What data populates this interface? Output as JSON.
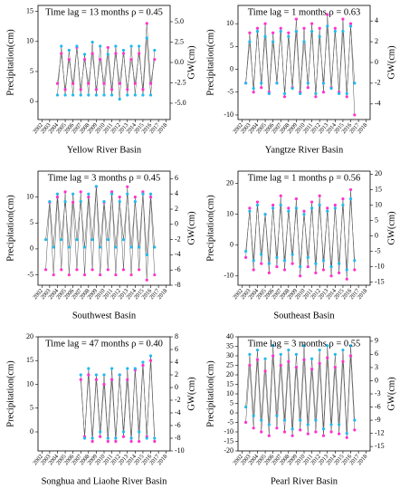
{
  "chart_data": [
    {
      "type": "line",
      "title": "Time lag = 13 months ρ = 0.45",
      "xlabel": "Yellow River Basin",
      "ylabel": "Precipitation(cm)",
      "y2label": "GW(cm)",
      "x": [
        2004,
        2004.5,
        2005,
        2005.5,
        2006,
        2006.5,
        2007,
        2007.5,
        2008,
        2008.5,
        2009,
        2009.5,
        2010,
        2010.5,
        2011,
        2011.5,
        2012,
        2012.5,
        2013,
        2013.5,
        2014,
        2014.5,
        2015,
        2015.5,
        2016,
        2016.5
      ],
      "xlim": [
        2001.5,
        2018.5
      ],
      "xticks": [
        2002,
        2003,
        2004,
        2005,
        2006,
        2007,
        2008,
        2009,
        2010,
        2011,
        2012,
        2013,
        2014,
        2015,
        2016,
        2017,
        2018
      ],
      "ylim": [
        -3,
        16
      ],
      "yticks": [
        0,
        5,
        10,
        15
      ],
      "y2lim": [
        -7,
        7
      ],
      "y2ticks": [
        {
          "value": -5,
          "label": "-5.0"
        },
        {
          "value": -2.5,
          "label": "-2.5"
        },
        {
          "value": 0,
          "label": "0.0"
        },
        {
          "value": 2.5,
          "label": "2.5"
        },
        {
          "value": 5,
          "label": "5.0"
        }
      ],
      "series": [
        {
          "color": "#ff33cc",
          "values": [
            3,
            8,
            2,
            7,
            3,
            9,
            2,
            7,
            3,
            8,
            2,
            7,
            3,
            9,
            2,
            8,
            3,
            8,
            2,
            7,
            3,
            8,
            2,
            13,
            3,
            7
          ]
        },
        {
          "color": "#22bbee",
          "axis": "y2",
          "values": [
            -4,
            2,
            -4,
            1.5,
            -4,
            2,
            -4,
            1,
            -4,
            2.5,
            -4,
            2,
            -4,
            1,
            -4,
            2,
            -4.5,
            1.5,
            -4,
            2,
            -4,
            2,
            -4,
            3,
            -4,
            1.5
          ]
        }
      ]
    },
    {
      "type": "line",
      "title": "Time lag = 1 months ρ = 0.63",
      "xlabel": "Yangtze River Basin",
      "ylabel": "Precipitation(cm)",
      "y2label": "GW(cm)",
      "x": [
        2002.5,
        2003,
        2003.5,
        2004,
        2004.5,
        2005,
        2005.5,
        2006,
        2006.5,
        2007,
        2007.5,
        2008,
        2008.5,
        2009,
        2009.5,
        2010,
        2010.5,
        2011,
        2011.5,
        2012,
        2012.5,
        2013,
        2013.5,
        2014,
        2014.5,
        2015,
        2015.5,
        2016,
        2016.5
      ],
      "xlim": [
        2001.5,
        2018.5
      ],
      "xticks": [
        2002,
        2003,
        2004,
        2005,
        2006,
        2007,
        2008,
        2009,
        2010,
        2011,
        2012,
        2013,
        2014,
        2015,
        2016,
        2017,
        2018
      ],
      "ylim": [
        -11,
        14
      ],
      "yticks": [
        -10,
        -5,
        0,
        5,
        10
      ],
      "y2lim": [
        -5.5,
        5.5
      ],
      "y2ticks": [
        -4,
        -2,
        0,
        2,
        4
      ],
      "series": [
        {
          "color": "#ff33cc",
          "values": [
            -3,
            8,
            -5,
            9,
            -4,
            10,
            -5,
            8,
            -3,
            9,
            -6,
            8,
            -4,
            11,
            -5,
            9,
            -4,
            10,
            -6,
            9,
            -5,
            12,
            -4,
            9,
            -5,
            11,
            -6,
            10,
            -10
          ]
        },
        {
          "color": "#22bbee",
          "axis": "y2",
          "values": [
            -2,
            2,
            -2.5,
            3,
            -2,
            2.5,
            -3,
            2,
            -2,
            3,
            -3,
            2.5,
            -2.5,
            3,
            -3,
            2,
            -2,
            3,
            -3,
            2.5,
            -2,
            3.5,
            -2.5,
            3,
            -3,
            3,
            -3,
            3.5,
            -2
          ]
        }
      ]
    },
    {
      "type": "line",
      "title": "Time lag = 3 months ρ = 0.45",
      "xlabel": "Southwest Basin",
      "ylabel": "Precipitation(cm)",
      "y2label": "GW(cm)",
      "x": [
        2002.5,
        2003,
        2003.5,
        2004,
        2004.5,
        2005,
        2005.5,
        2006,
        2006.5,
        2007,
        2007.5,
        2008,
        2008.5,
        2009,
        2009.5,
        2010,
        2010.5,
        2011,
        2011.5,
        2012,
        2012.5,
        2013,
        2013.5,
        2014,
        2014.5,
        2015,
        2015.5,
        2016,
        2016.5
      ],
      "xlim": [
        2001.5,
        2018.5
      ],
      "xticks": [
        2002,
        2003,
        2004,
        2005,
        2006,
        2007,
        2008,
        2009,
        2010,
        2011,
        2012,
        2013,
        2014,
        2015,
        2016,
        2017,
        2018
      ],
      "ylim": [
        -7,
        15
      ],
      "yticks": [
        -5,
        0,
        5,
        10
      ],
      "y2lim": [
        -8,
        7
      ],
      "y2ticks": [
        -8,
        -6,
        -4,
        -2,
        0,
        2,
        4,
        6
      ],
      "series": [
        {
          "color": "#ff33cc",
          "values": [
            -4,
            9,
            -5,
            10,
            -4,
            11,
            -5,
            9,
            -4,
            11,
            -5,
            10,
            -4,
            12,
            -5,
            9,
            -4,
            11,
            -5,
            10,
            -4,
            12,
            -5,
            10,
            -4,
            11,
            -6,
            10,
            -5
          ]
        },
        {
          "color": "#22bbee",
          "axis": "y2",
          "values": [
            -2,
            3,
            -3,
            4,
            -2,
            3,
            -3,
            4,
            -2,
            3,
            -3,
            4,
            -2,
            5,
            -3,
            3,
            -2,
            4,
            -3,
            3,
            -2,
            4,
            -3,
            3,
            -3,
            4,
            -4,
            4,
            -3
          ]
        }
      ]
    },
    {
      "type": "line",
      "title": "Time lag = 1 months ρ = 0.56",
      "xlabel": "Southeast Basin",
      "ylabel": "Precipitation(cm)",
      "y2label": "GW(cm)",
      "x": [
        2002.5,
        2003,
        2003.5,
        2004,
        2004.5,
        2005,
        2005.5,
        2006,
        2006.5,
        2007,
        2007.5,
        2008,
        2008.5,
        2009,
        2009.5,
        2010,
        2010.5,
        2011,
        2011.5,
        2012,
        2012.5,
        2013,
        2013.5,
        2014,
        2014.5,
        2015,
        2015.5,
        2016,
        2016.5
      ],
      "xlim": [
        2001.5,
        2018.5
      ],
      "xticks": [
        2002,
        2003,
        2004,
        2005,
        2006,
        2007,
        2008,
        2009,
        2010,
        2011,
        2012,
        2013,
        2014,
        2015,
        2016,
        2017,
        2018
      ],
      "ylim": [
        -13,
        24
      ],
      "yticks": [
        -10,
        0,
        10,
        20
      ],
      "y2lim": [
        -16,
        21
      ],
      "y2ticks": [
        -15,
        -10,
        -5,
        0,
        5,
        10,
        15,
        20
      ],
      "series": [
        {
          "color": "#ff33cc",
          "values": [
            -4,
            12,
            -8,
            14,
            -6,
            10,
            -9,
            13,
            -7,
            16,
            -8,
            12,
            -6,
            15,
            -10,
            11,
            -7,
            14,
            -9,
            16,
            -8,
            12,
            -10,
            13,
            -9,
            15,
            -11,
            18,
            -8
          ]
        },
        {
          "color": "#22bbee",
          "axis": "y2",
          "values": [
            -5,
            8,
            -8,
            10,
            -6,
            7,
            -9,
            9,
            -7,
            10,
            -8,
            8,
            -6,
            9,
            -10,
            7,
            -7,
            9,
            -9,
            10,
            -8,
            8,
            -10,
            9,
            -9,
            10,
            -11,
            12,
            -8
          ]
        }
      ]
    },
    {
      "type": "line",
      "title": "Time lag = 47 months ρ = 0.40",
      "xlabel": "Songhua and Liaohe River Basin",
      "ylabel": "Precipitation(cm)",
      "y2label": "GW(cm)",
      "x": [
        2007,
        2007.5,
        2008,
        2008.5,
        2009,
        2009.5,
        2010,
        2010.5,
        2011,
        2011.5,
        2012,
        2012.5,
        2013,
        2013.5,
        2014,
        2014.5,
        2015,
        2015.5,
        2016,
        2016.5
      ],
      "xlim": [
        2001.5,
        2018.5
      ],
      "xticks": [
        2002,
        2003,
        2004,
        2005,
        2006,
        2007,
        2008,
        2009,
        2010,
        2011,
        2012,
        2013,
        2014,
        2015,
        2016,
        2017,
        2018
      ],
      "ylim": [
        -4,
        20
      ],
      "yticks": [
        0,
        5,
        10,
        15,
        20
      ],
      "y2lim": [
        -10,
        8
      ],
      "y2ticks": [
        -10,
        -8,
        -6,
        -4,
        -2,
        0,
        2,
        4,
        6,
        8
      ],
      "series": [
        {
          "color": "#ff33cc",
          "values": [
            11,
            -1,
            12,
            -2,
            11,
            -1,
            10,
            -2,
            11,
            -2,
            12,
            -1,
            11,
            -2,
            13,
            -2,
            14,
            -1,
            15,
            -2
          ]
        },
        {
          "color": "#22bbee",
          "axis": "y2",
          "values": [
            2,
            -8,
            3,
            -8,
            2,
            -7,
            2,
            -8,
            3,
            -8,
            2,
            -7,
            3,
            -8,
            3,
            -7,
            4,
            -8,
            5,
            -8
          ]
        }
      ]
    },
    {
      "type": "line",
      "title": "Time lag = 3 months ρ = 0.55",
      "xlabel": "Pearl River Basin",
      "ylabel": "Precipitation(cm)",
      "y2label": "GW(cm)",
      "x": [
        2002.5,
        2003,
        2003.5,
        2004,
        2004.5,
        2005,
        2005.5,
        2006,
        2006.5,
        2007,
        2007.5,
        2008,
        2008.5,
        2009,
        2009.5,
        2010,
        2010.5,
        2011,
        2011.5,
        2012,
        2012.5,
        2013,
        2013.5,
        2014,
        2014.5,
        2015,
        2015.5,
        2016,
        2016.5
      ],
      "xlim": [
        2001.5,
        2018.5
      ],
      "xticks": [
        2002,
        2003,
        2004,
        2005,
        2006,
        2007,
        2008,
        2009,
        2010,
        2011,
        2012,
        2013,
        2014,
        2015,
        2016,
        2017,
        2018
      ],
      "ylim": [
        -20,
        40
      ],
      "yticks": [
        -20,
        -15,
        -10,
        -5,
        0,
        5,
        10,
        15,
        20,
        25,
        30,
        35,
        40
      ],
      "y2lim": [
        -16,
        10
      ],
      "y2ticks": [
        -15,
        -12,
        -9,
        -6,
        -3,
        0,
        3,
        6,
        9
      ],
      "series": [
        {
          "color": "#ff33cc",
          "values": [
            -5,
            25,
            -8,
            28,
            -10,
            22,
            -12,
            30,
            -8,
            25,
            -10,
            27,
            -12,
            24,
            -9,
            28,
            -11,
            23,
            -10,
            26,
            -12,
            29,
            -10,
            24,
            -11,
            27,
            -13,
            30,
            -9
          ]
        },
        {
          "color": "#22bbee",
          "axis": "y2",
          "values": [
            -6,
            6,
            -8,
            7,
            -9,
            5,
            -10,
            8,
            -8,
            6,
            -9,
            7,
            -11,
            6,
            -9,
            8,
            -10,
            5,
            -9,
            7,
            -11,
            8,
            -10,
            6,
            -10,
            7,
            -12,
            8,
            -9
          ]
        }
      ]
    }
  ]
}
